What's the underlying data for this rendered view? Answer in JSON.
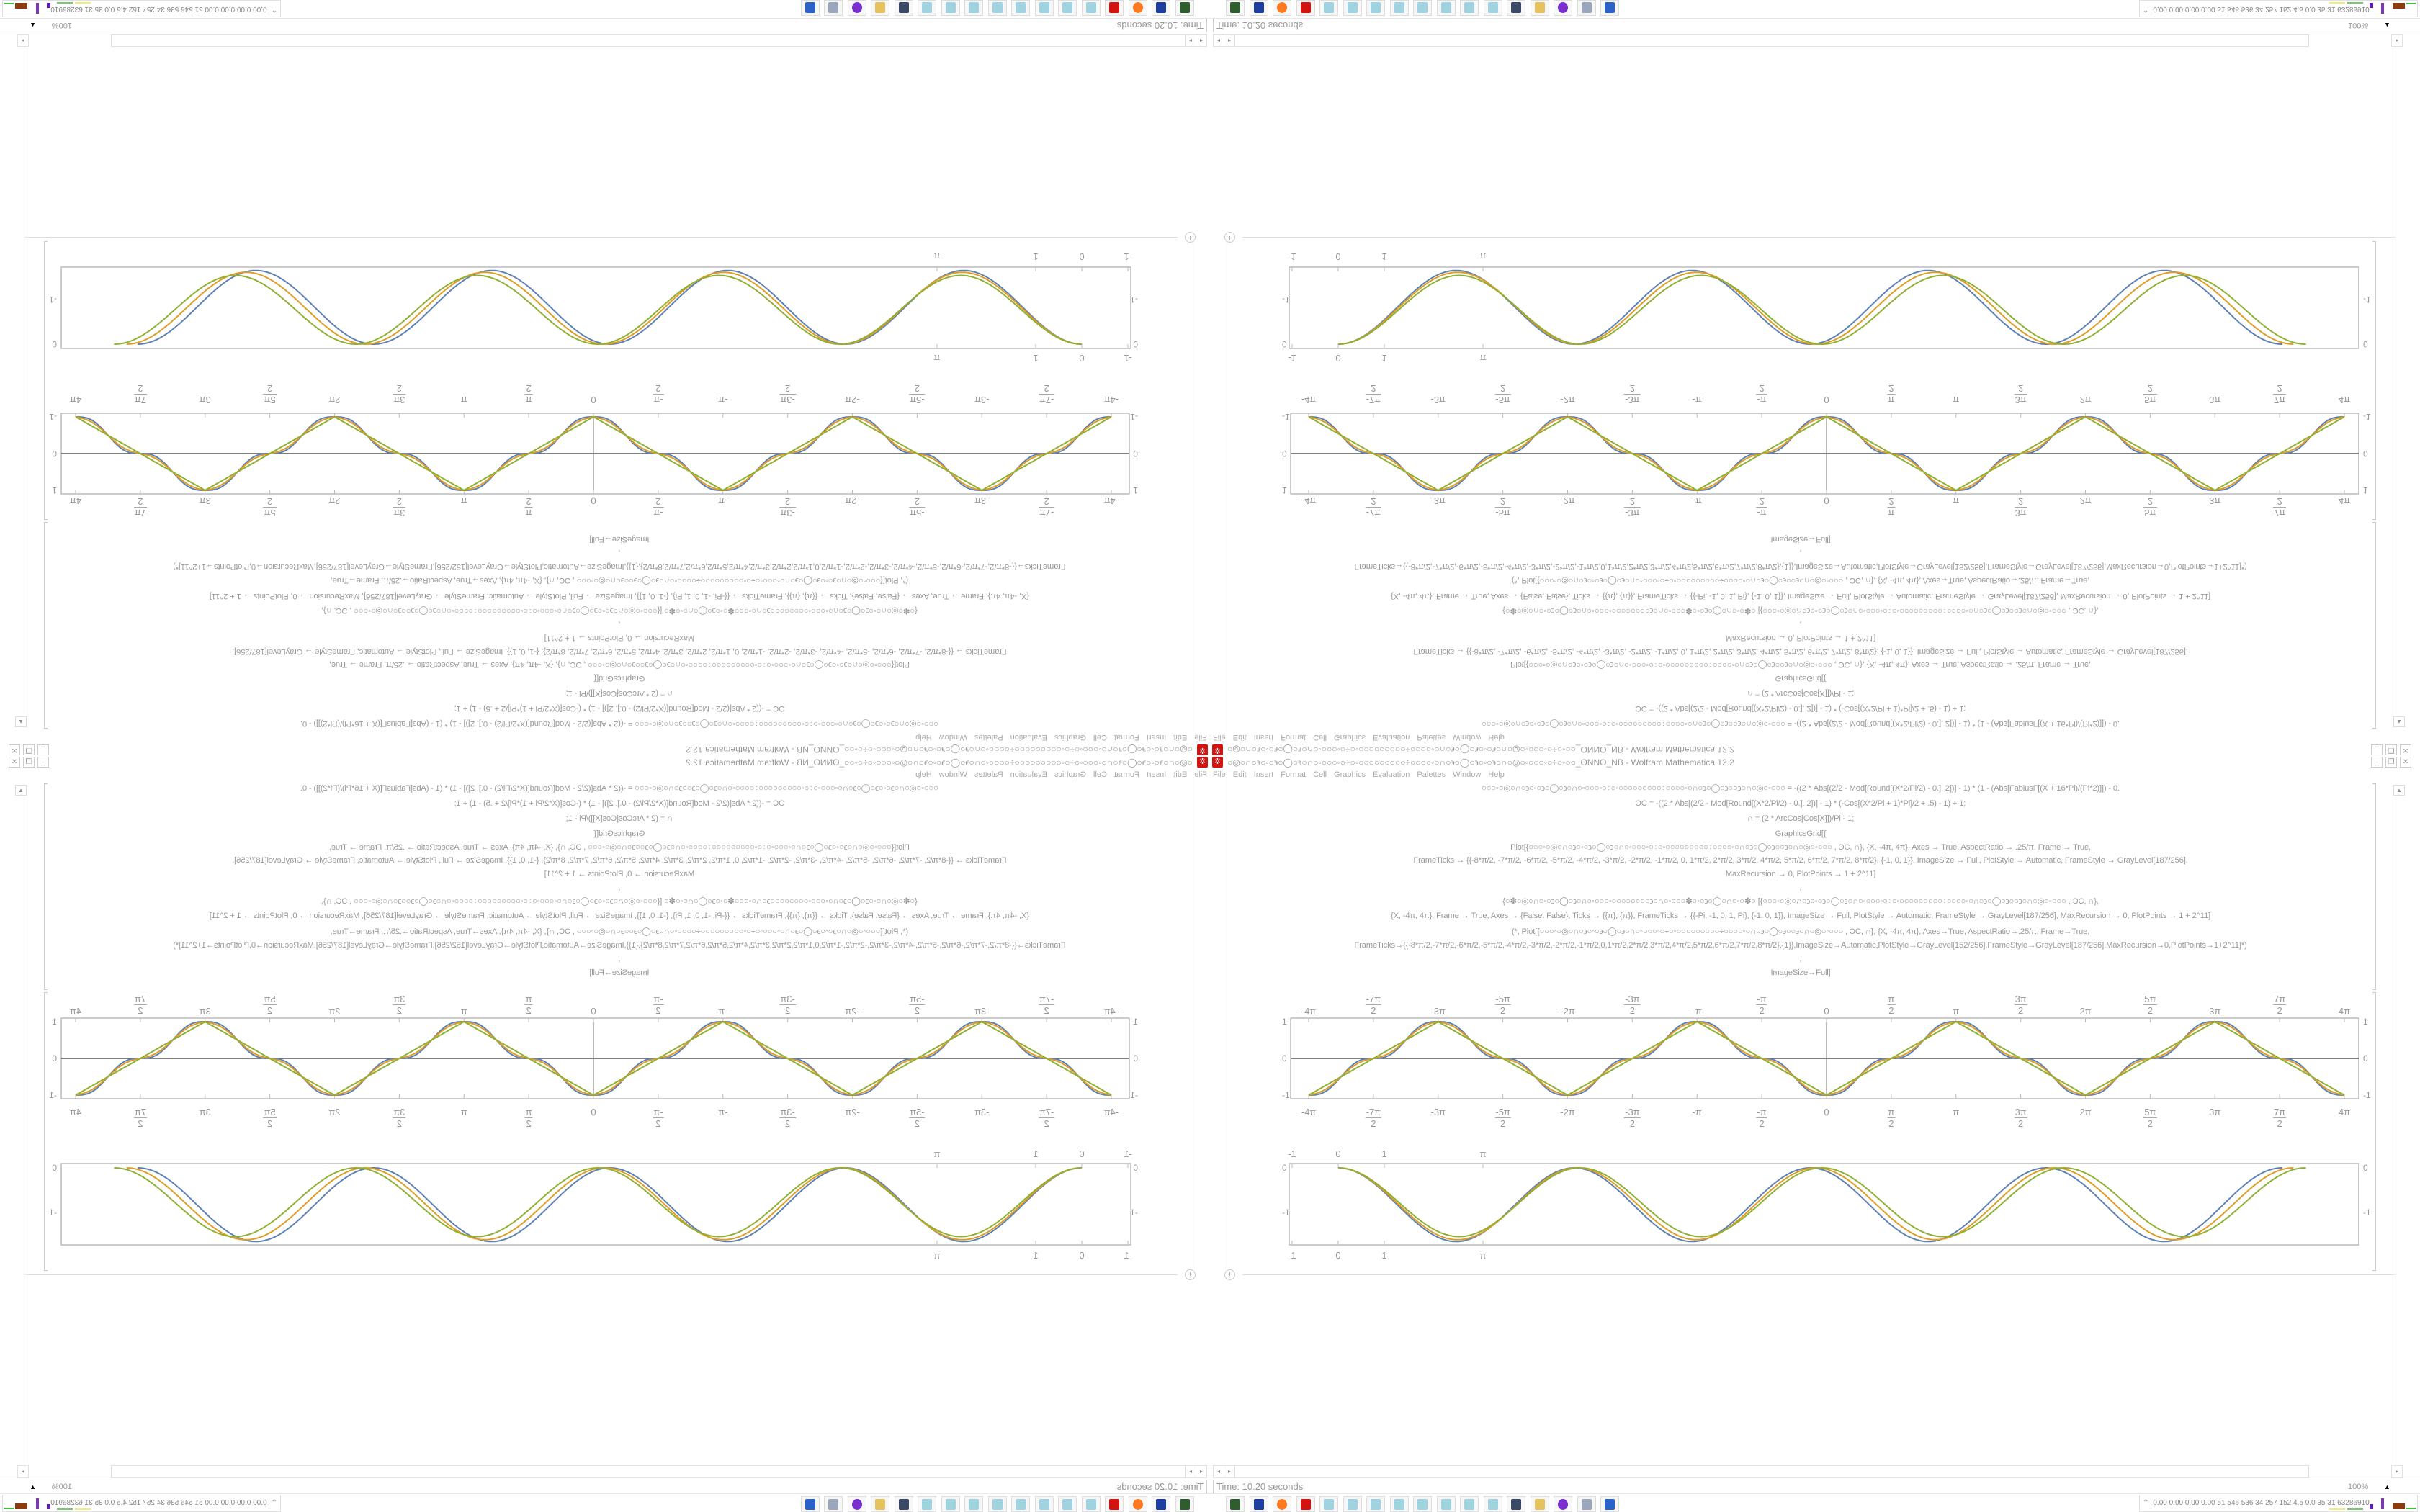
{
  "window": {
    "title": "○◎○∩○϶○◦○϶○◯○϶○∩○◦○○○◦○÷○◦○○○○○○○○○÷○○○○◦○∩○϶○◯○϶○◦○϶○∩○◎○◦○○○◦○÷○◦○○_ONNO_NB - Wolfram Mathematica 12.2",
    "app_icon": "mathematica-icon",
    "buttons": [
      "minimize",
      "restore",
      "close"
    ]
  },
  "menu": [
    "File",
    "Edit",
    "Insert",
    "Format",
    "Cell",
    "Graphics",
    "Evaluation",
    "Palettes",
    "Window",
    "Help"
  ],
  "code_lines": [
    "○○○◦○◎○∩○϶○◦○϶○◯○϶○∩○◦○○○◦○÷○◦○○○○○○○○○÷○○○○◦○∩○϶○◯○϶○○϶○∩○◎○◦○○○   = -((2 * Abs[(2/2 - Mod[Round[(X*2/Pi/2) - 0.], 2])] - 1) * (1 - (Abs[FabiusF[(X + 16*Pi)/(Pi*2)]]) - 0.",
    "ϽC = -((2 * Abs[(2/2 - Mod[Round[(X*2/Pi/2) - 0.], 2])] - 1) * (-Cos[(X*2/Pi + 1)*Pi]/2 + .5) - 1) + 1;",
    "∩ = (2 * ArcCos[Cos[X]])/Pi - 1;",
    "GraphicsGrid[{",
    "Plot[{○○○◦○◎○∩○϶○◦○϶○◯○϶○∩○◦○○○◦○÷○◦○○○○○○○○○÷○○○○◦○∩○϶○◯○϶○○϶○∩○◎○◦○○○  , ϽC, ∩}, {X, -4π, 4π}, Axes → True, AspectRatio → .25/π, Frame → True,",
    "FrameTicks → {{-8*π/2, -7*π/2, -6*π/2, -5*π/2, -4*π/2, -3*π/2, -2*π/2, -1*π/2, 0, 1*π/2, 2*π/2, 3*π/2, 4*π/2, 5*π/2, 6*π/2, 7*π/2, 8*π/2}, {-1, 0, 1}}, ImageSize → Full, PlotStyle → Automatic, FrameStyle → GrayLevel[187/256],",
    "MaxRecursion → 0, PlotPoints → 1 + 2^11]",
    ",",
    "{○✽○◎○∩○◦○϶○◯○϶○∩○◦○○○◦○○○○○○○○϶○∩○◦○○○✽○◦○϶○◯○∩○◦○✽○  [{○○○◦○◎○∩○϶○◦○϶○◯○϶○∩○◦○○○◦○÷○◦○○○○○○○○○÷○○○○◦○∩○϶○◯○϶○○϶○∩○◎○◦○○○  , ϽC, ∩},",
    "{X, -4π, 4π}, Frame → True, Axes → {False, False}, Ticks → {{π}, {π}}, FrameTicks → {{-Pi, -1, 0, 1, Pi}, {-1, 0, 1}}, ImageSize → Full, PlotStyle → Automatic, FrameStyle → GrayLevel[187/256], MaxRecursion → 0, PlotPoints → 1 + 2^11]",
    "(*, Plot[{○○○◦○◎○∩○϶○◦○϶○◯○϶○∩○◦○○○◦○÷○◦○○○○○○○○○÷○○○○◦○∩○϶○◯○϶○○϶○∩○◎○◦○○○  , ϽC, ∩}, {X, -4π, 4π}, Axes→True, AspectRatio→.25/π, Frame→True,",
    "FrameTicks→{{-8*π/2,-7*π/2,-6*π/2,-5*π/2,-4*π/2,-3*π/2,-2*π/2,-1*π/2,0,1*π/2,2*π/2,3*π/2,4*π/2,5*π/2,6*π/2,7*π/2,8*π/2},{1}},ImageSize→Automatic,PlotStyle→GrayLevel[152/256],FrameStyle→GrayLevel[187/256],MaxRecursion→0,PlotPoints→1+2^11]*)",
    ",",
    "ImageSize→Full]"
  ],
  "plot1": {
    "x_range": [
      "-4π",
      "4π"
    ],
    "x_ticks": [
      {
        "num": "-4π"
      },
      {
        "num": "-7π",
        "den": "2"
      },
      {
        "num": "-3π"
      },
      {
        "num": "-5π",
        "den": "2"
      },
      {
        "num": "-2π"
      },
      {
        "num": "-3π",
        "den": "2"
      },
      {
        "num": "-π"
      },
      {
        "num": "-π",
        "den": "2"
      },
      {
        "num": "0"
      },
      {
        "num": "π",
        "den": "2"
      },
      {
        "num": "π"
      },
      {
        "num": "3π",
        "den": "2"
      },
      {
        "num": "2π"
      },
      {
        "num": "5π",
        "den": "2"
      },
      {
        "num": "3π"
      },
      {
        "num": "7π",
        "den": "2"
      },
      {
        "num": "4π"
      }
    ],
    "y_ticks": [
      "1",
      "0",
      "-1"
    ],
    "axes": true
  },
  "plot2": {
    "x_ticks": [
      "-1",
      "0",
      "1",
      "π"
    ],
    "y_ticks": [
      "0",
      "-1"
    ],
    "axes": false
  },
  "series_colors": [
    "#5e81b5",
    "#e19c24",
    "#8fb032"
  ],
  "frame_color": "#bbbbbb",
  "status": {
    "time": "Time: 10.20 seconds",
    "zoom": "100%"
  },
  "taskbar": {
    "icons": [
      "terminal-icon",
      "floppy-64-icon",
      "firefox-icon",
      "mathematica-icon",
      "notepad-icon",
      "notepad-icon",
      "notepad-icon",
      "notepad-icon",
      "notepad-icon",
      "notepad-icon",
      "notepad-icon",
      "notepad-icon",
      "monitor-icon",
      "folder-icon",
      "purple-app-icon",
      "scroll-icon",
      "window-icon"
    ],
    "tray_text": "0.00 0.00 0.00 0.00  51  546  536  34  257  152  4.5  0.0  35  31  63286910"
  }
}
